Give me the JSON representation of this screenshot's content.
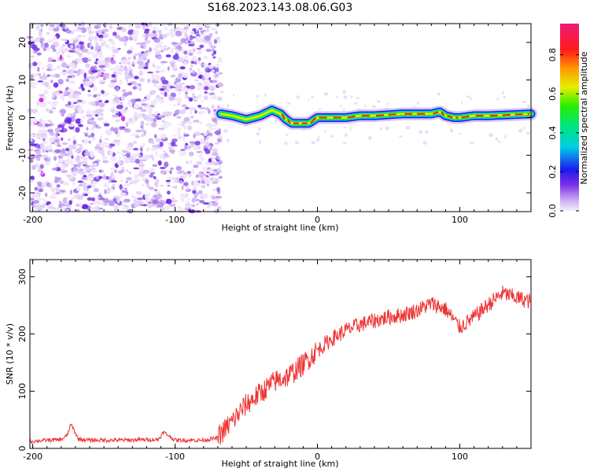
{
  "title": "S168.2023.143.08.06.G03",
  "chart_data": [
    {
      "type": "heatmap",
      "xlabel": "Height of straight line (km)",
      "ylabel": "Frequency (Hz)",
      "xlim": [
        -202,
        150
      ],
      "ylim": [
        -25,
        25
      ],
      "xticks": [
        -200,
        -100,
        0,
        100
      ],
      "yticks": [
        -20,
        -10,
        0,
        10,
        20
      ],
      "noise_region_x": [
        -202,
        -68
      ],
      "tone_ridge": {
        "x": [
          -68,
          -60,
          -50,
          -40,
          -32,
          -26,
          -22,
          -18,
          -12,
          -6,
          0,
          10,
          20,
          30,
          40,
          60,
          80,
          86,
          90,
          96,
          100,
          110,
          120,
          150
        ],
        "y": [
          1.0,
          0.5,
          -0.5,
          0.5,
          2.0,
          1.0,
          -0.5,
          -1.5,
          -1.5,
          -1.5,
          0.0,
          0.0,
          0.0,
          0.5,
          0.5,
          1.0,
          1.0,
          1.5,
          0.5,
          0.0,
          0.0,
          0.5,
          0.5,
          1.0
        ]
      },
      "colorbar": {
        "label": "Normalized spectral amplitude",
        "ticks": [
          "0.0",
          "0.2",
          "0.4",
          "0.6",
          "0.8"
        ],
        "range": [
          0,
          0.96
        ]
      }
    },
    {
      "type": "line",
      "xlabel": "Height of straight line (km)",
      "ylabel": "SNR (10 * v/v)",
      "xlim": [
        -202,
        150
      ],
      "ylim": [
        0,
        330
      ],
      "xticks": [
        -200,
        -100,
        0,
        100
      ],
      "yticks": [
        0,
        100,
        200,
        300
      ],
      "series": [
        {
          "color": "#ee3333",
          "x": [
            -202,
            -190,
            -180,
            -176,
            -173,
            -168,
            -160,
            -140,
            -120,
            -112,
            -108,
            -100,
            -90,
            -80,
            -70,
            -60,
            -50,
            -40,
            -30,
            -20,
            -10,
            0,
            10,
            20,
            30,
            40,
            50,
            60,
            70,
            80,
            90,
            100,
            110,
            120,
            130,
            140,
            150
          ],
          "values": [
            12,
            14,
            15,
            22,
            42,
            16,
            14,
            14,
            15,
            15,
            28,
            14,
            14,
            14,
            18,
            45,
            75,
            95,
            115,
            125,
            145,
            170,
            190,
            205,
            215,
            222,
            228,
            232,
            240,
            252,
            242,
            210,
            228,
            250,
            270,
            262,
            255
          ]
        }
      ]
    }
  ]
}
